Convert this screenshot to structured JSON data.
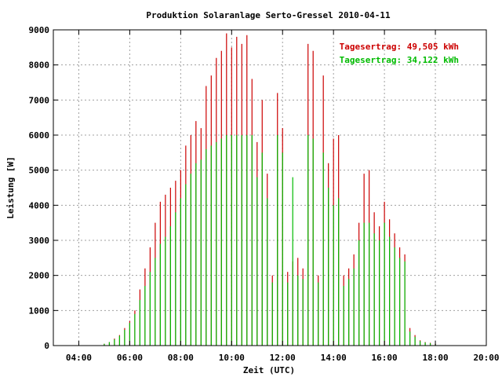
{
  "chart_data": {
    "type": "bar",
    "title": "Produktion Solaranlage Serto-Gressel 2010-04-11",
    "xlabel": "Zeit (UTC)",
    "ylabel": "Leistung [W]",
    "xlim": [
      3.0,
      20.0
    ],
    "ylim": [
      0,
      9000
    ],
    "xticks": [
      4,
      6,
      8,
      10,
      12,
      14,
      16,
      18,
      20
    ],
    "xtick_labels": [
      "04:00",
      "06:00",
      "08:00",
      "10:00",
      "12:00",
      "14:00",
      "16:00",
      "18:00",
      "20:00"
    ],
    "yticks": [
      0,
      1000,
      2000,
      3000,
      4000,
      5000,
      6000,
      7000,
      8000,
      9000
    ],
    "ytick_labels": [
      "0",
      "1000",
      "2000",
      "3000",
      "4000",
      "5000",
      "6000",
      "7000",
      "8000",
      "9000"
    ],
    "grid": true,
    "legend_position": "top-right",
    "series": [
      {
        "name": "Tagesertrag: 49,505 kWh",
        "color": "#cc0000",
        "x": [
          5.0,
          5.2,
          5.4,
          5.6,
          5.8,
          6.0,
          6.2,
          6.4,
          6.6,
          6.8,
          7.0,
          7.2,
          7.4,
          7.6,
          7.8,
          8.0,
          8.2,
          8.4,
          8.6,
          8.8,
          9.0,
          9.2,
          9.4,
          9.6,
          9.8,
          10.0,
          10.2,
          10.4,
          10.6,
          10.8,
          11.0,
          11.2,
          11.4,
          11.6,
          11.8,
          12.0,
          12.2,
          12.4,
          12.6,
          12.8,
          13.0,
          13.2,
          13.4,
          13.6,
          13.8,
          14.0,
          14.2,
          14.4,
          14.6,
          14.8,
          15.0,
          15.2,
          15.4,
          15.6,
          15.8,
          16.0,
          16.2,
          16.4,
          16.6,
          16.8,
          17.0,
          17.2,
          17.4,
          17.6,
          17.8,
          18.0
        ],
        "y": [
          50,
          100,
          200,
          300,
          500,
          700,
          1000,
          1600,
          2200,
          2800,
          3500,
          4100,
          4300,
          4500,
          4700,
          5000,
          5700,
          6000,
          6400,
          6200,
          7400,
          7700,
          8200,
          8400,
          8900,
          8500,
          8800,
          8600,
          8850,
          7600,
          5800,
          7000,
          4900,
          2000,
          7200,
          6200,
          2100,
          2400,
          2500,
          2200,
          8600,
          8400,
          2000,
          7700,
          5200,
          5900,
          6000,
          2000,
          2200,
          2600,
          3500,
          4900,
          5000,
          3800,
          3400,
          4100,
          3600,
          3200,
          2800,
          2600,
          500,
          300,
          150,
          100,
          80,
          50
        ]
      },
      {
        "name": "Tagesertrag: 34,122 kWh",
        "color": "#00bb00",
        "x": [
          5.0,
          5.2,
          5.4,
          5.6,
          5.8,
          6.0,
          6.2,
          6.4,
          6.6,
          6.8,
          7.0,
          7.2,
          7.4,
          7.6,
          7.8,
          8.0,
          8.2,
          8.4,
          8.6,
          8.8,
          9.0,
          9.2,
          9.4,
          9.6,
          9.8,
          10.0,
          10.2,
          10.4,
          10.6,
          10.8,
          11.0,
          11.2,
          11.4,
          11.6,
          11.8,
          12.0,
          12.2,
          12.4,
          12.6,
          12.8,
          13.0,
          13.2,
          13.4,
          13.6,
          13.8,
          14.0,
          14.2,
          14.4,
          14.6,
          14.8,
          15.0,
          15.2,
          15.4,
          15.6,
          15.8,
          16.0,
          16.2,
          16.4,
          16.6,
          16.8,
          17.0,
          17.2,
          17.4,
          17.6,
          17.8,
          18.0
        ],
        "y": [
          50,
          100,
          180,
          280,
          450,
          650,
          900,
          1300,
          1700,
          2100,
          2500,
          2900,
          3100,
          3400,
          3800,
          4200,
          4600,
          4900,
          5200,
          5300,
          5600,
          5700,
          5800,
          5900,
          6000,
          6000,
          6000,
          6000,
          6000,
          6000,
          4800,
          5500,
          4200,
          1800,
          6000,
          5500,
          1800,
          4800,
          2000,
          1900,
          6000,
          5900,
          1800,
          5500,
          4500,
          4000,
          4200,
          1700,
          1900,
          2200,
          3000,
          3500,
          3500,
          3200,
          3000,
          3500,
          3100,
          2800,
          2500,
          2400,
          400,
          250,
          130,
          90,
          70,
          40
        ]
      }
    ]
  }
}
